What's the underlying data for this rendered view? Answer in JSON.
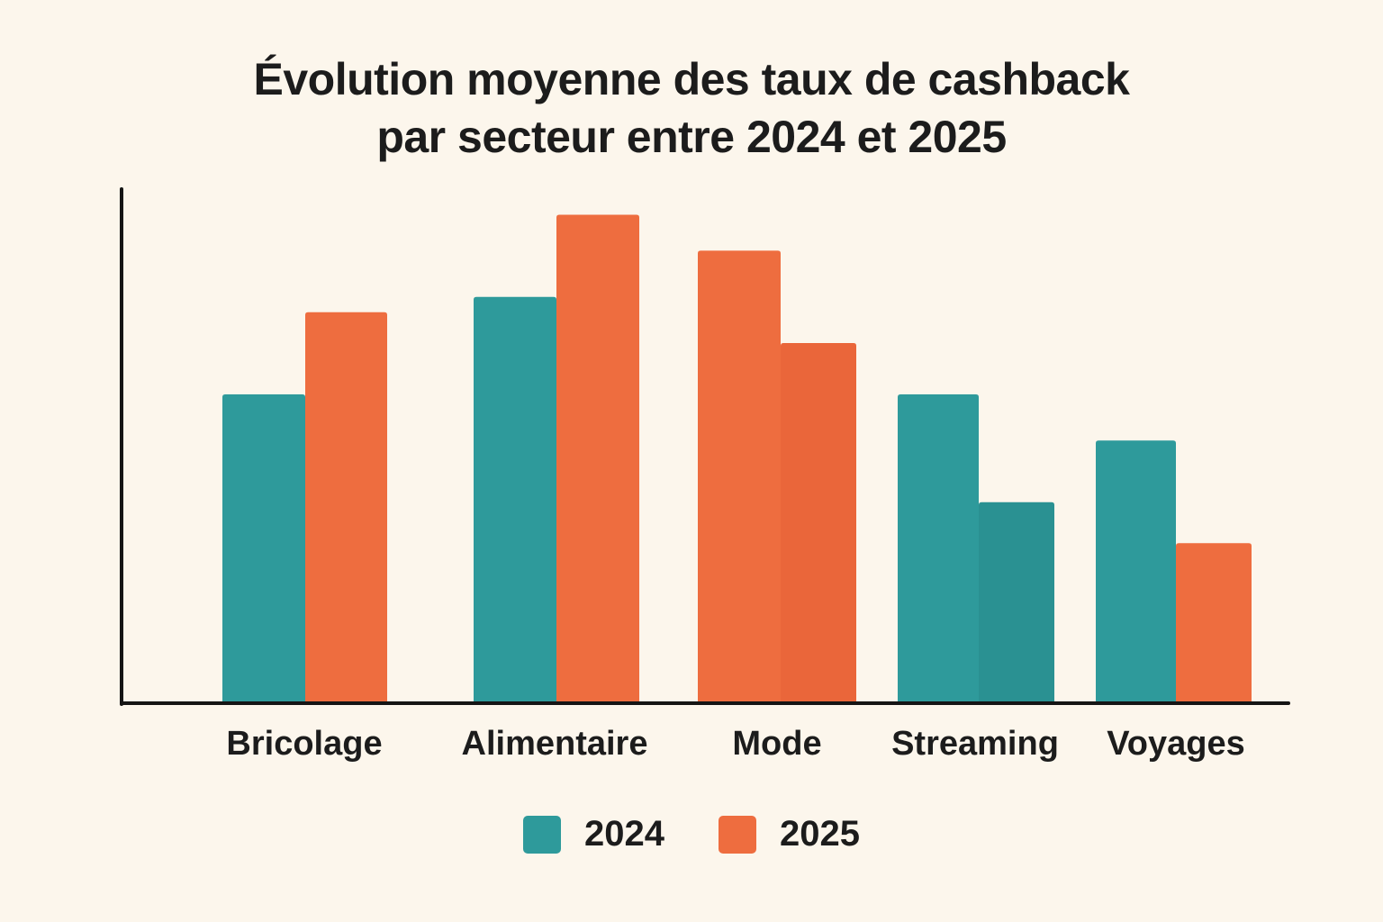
{
  "chart_data": {
    "type": "bar",
    "title": "Évolution moyenne des taux de cashback par secteur entre 2024 et 2025",
    "title_lines": [
      "Évolution moyenne des taux de cashback",
      "par secteur entre 2024 et 2025"
    ],
    "xlabel": "",
    "ylabel": "",
    "ylim": [
      0,
      100
    ],
    "grid": false,
    "y_ticks_shown": false,
    "categories": [
      "Bricolage",
      "Alimentaire",
      "Mode",
      "Streaming",
      "Voyages"
    ],
    "series": [
      {
        "name": "2024",
        "color": "#2e9a9b",
        "values": [
          60,
          79,
          88,
          60,
          51
        ],
        "bar_colors": [
          "#2e9a9b",
          "#2e9a9b",
          "#ee6d3f",
          "#2e9a9b",
          "#2e9a9b"
        ]
      },
      {
        "name": "2025",
        "color": "#ee6d3f",
        "values": [
          76,
          95,
          70,
          39,
          31
        ],
        "bar_colors": [
          "#ee6d3f",
          "#ee6d3f",
          "#ea663a",
          "#2a9192",
          "#ee6d3f"
        ]
      }
    ],
    "legend": {
      "position": "bottom-center",
      "entries": [
        {
          "label": "2024",
          "color": "#2e9a9b"
        },
        {
          "label": "2025",
          "color": "#ee6d3f"
        }
      ]
    }
  },
  "colors": {
    "background": "#fcf6ec",
    "axis": "#151515",
    "text": "#1c1c1c"
  }
}
